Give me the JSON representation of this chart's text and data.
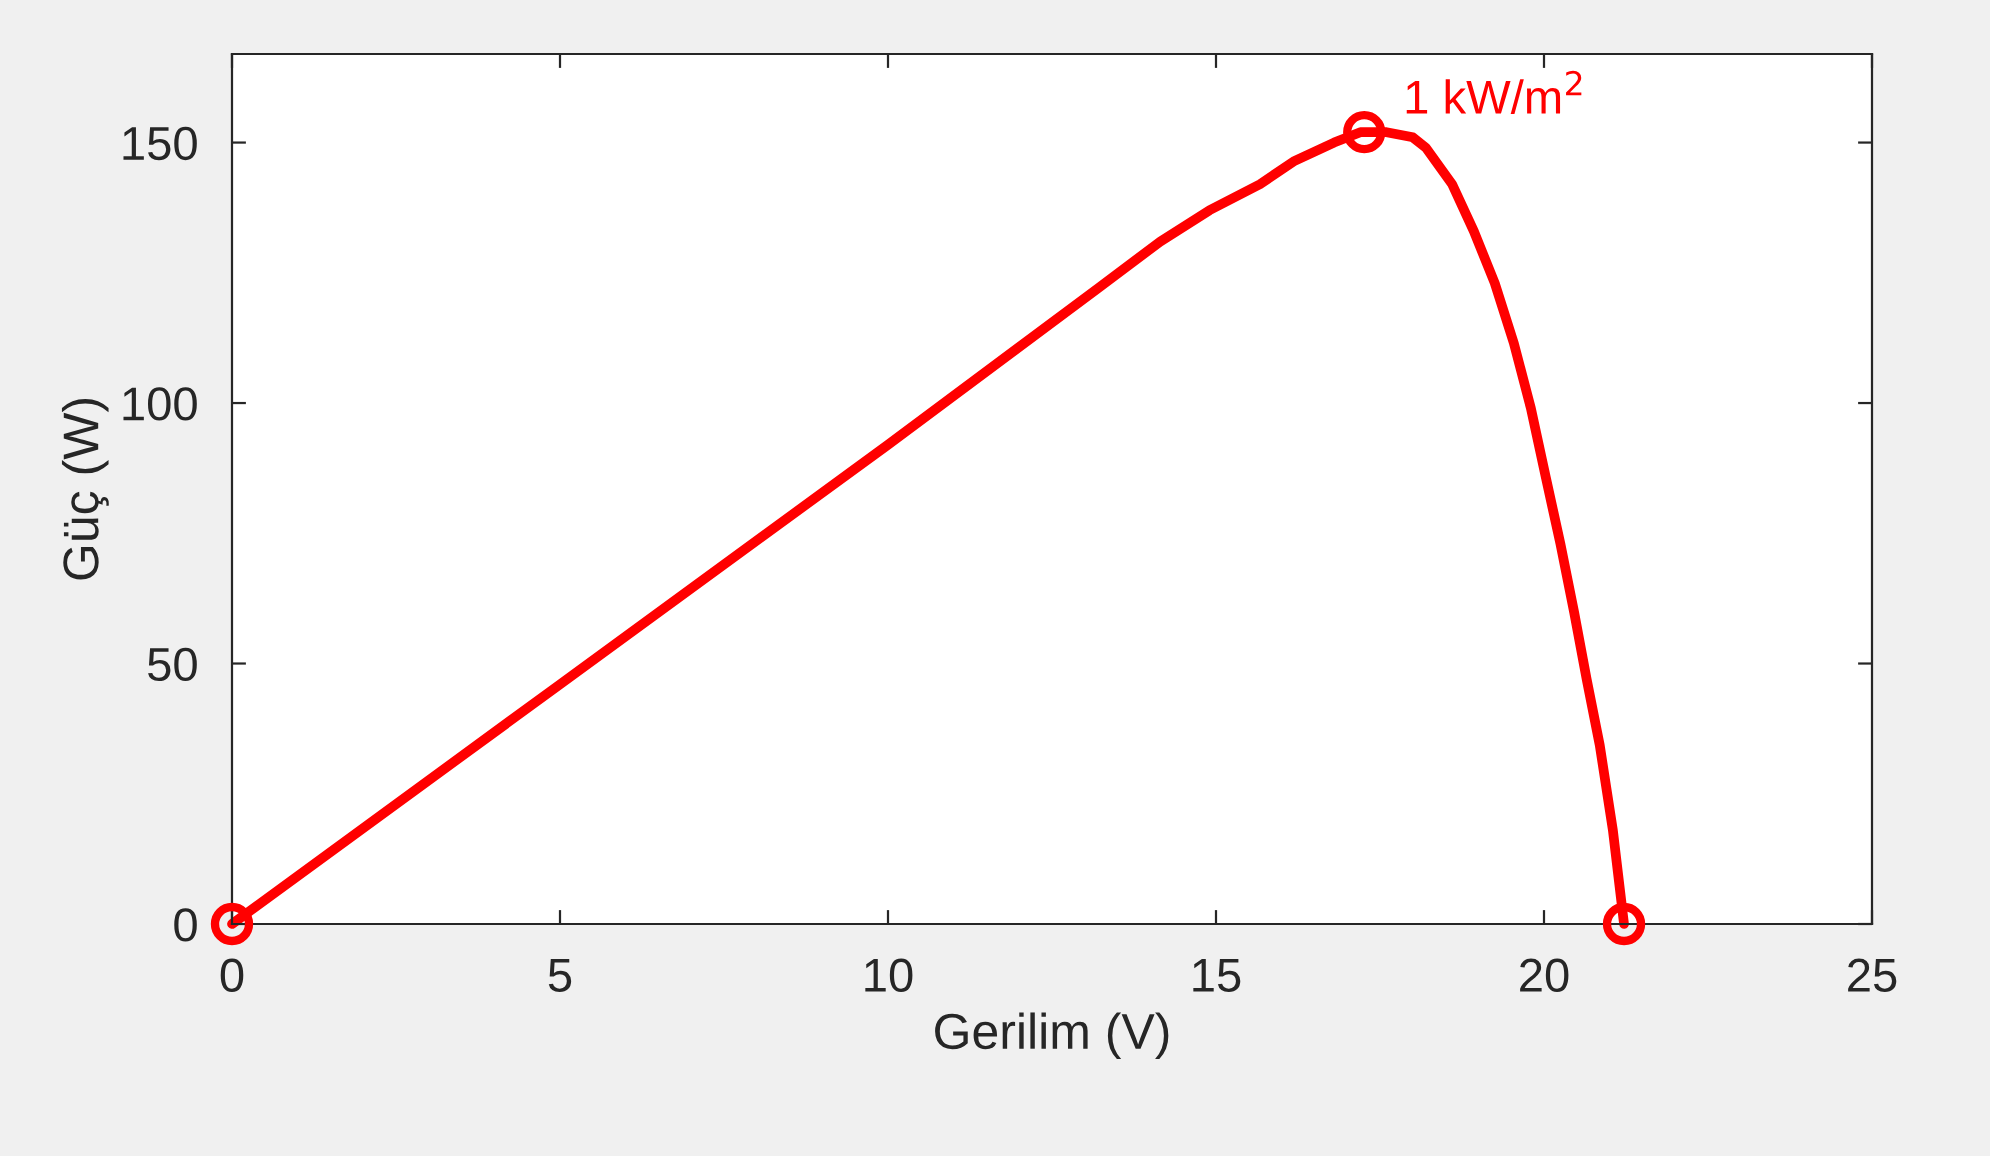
{
  "chart_data": {
    "type": "line",
    "xlabel": "Gerilim (V)",
    "ylabel": "Güç (W)",
    "xlim": [
      0,
      25
    ],
    "xticks": [
      0,
      5,
      10,
      15,
      20,
      25
    ],
    "ylim": [
      0,
      167
    ],
    "yticks": [
      0,
      50,
      100,
      150
    ],
    "grid": false,
    "legend": false,
    "series": [
      {
        "color": "#ff0000",
        "marker": "none",
        "x": [
          0,
          5,
          10,
          13.2,
          14.15,
          14.9,
          15.67,
          16.2,
          16.8,
          17.2,
          17.6,
          18.0,
          18.2,
          18.6,
          18.93,
          19.25,
          19.54,
          19.8,
          20.03,
          20.25,
          20.46,
          20.65,
          20.85,
          21.05,
          21.22
        ],
        "values": [
          0,
          46,
          92,
          122,
          131,
          137,
          142,
          146.5,
          150,
          152,
          152,
          151,
          149,
          142,
          133,
          123,
          111.5,
          99,
          85.6,
          73,
          59.8,
          47,
          34.3,
          18,
          0
        ]
      },
      {
        "type": "scatter",
        "color": "#ff0000",
        "marker": "circle",
        "x": [
          0,
          17.26,
          21.22
        ],
        "values": [
          0,
          152,
          0
        ]
      }
    ],
    "annotations": [
      {
        "text": "1 kW/m$^{2}$",
        "x": 17.26,
        "y": 152
      }
    ]
  }
}
